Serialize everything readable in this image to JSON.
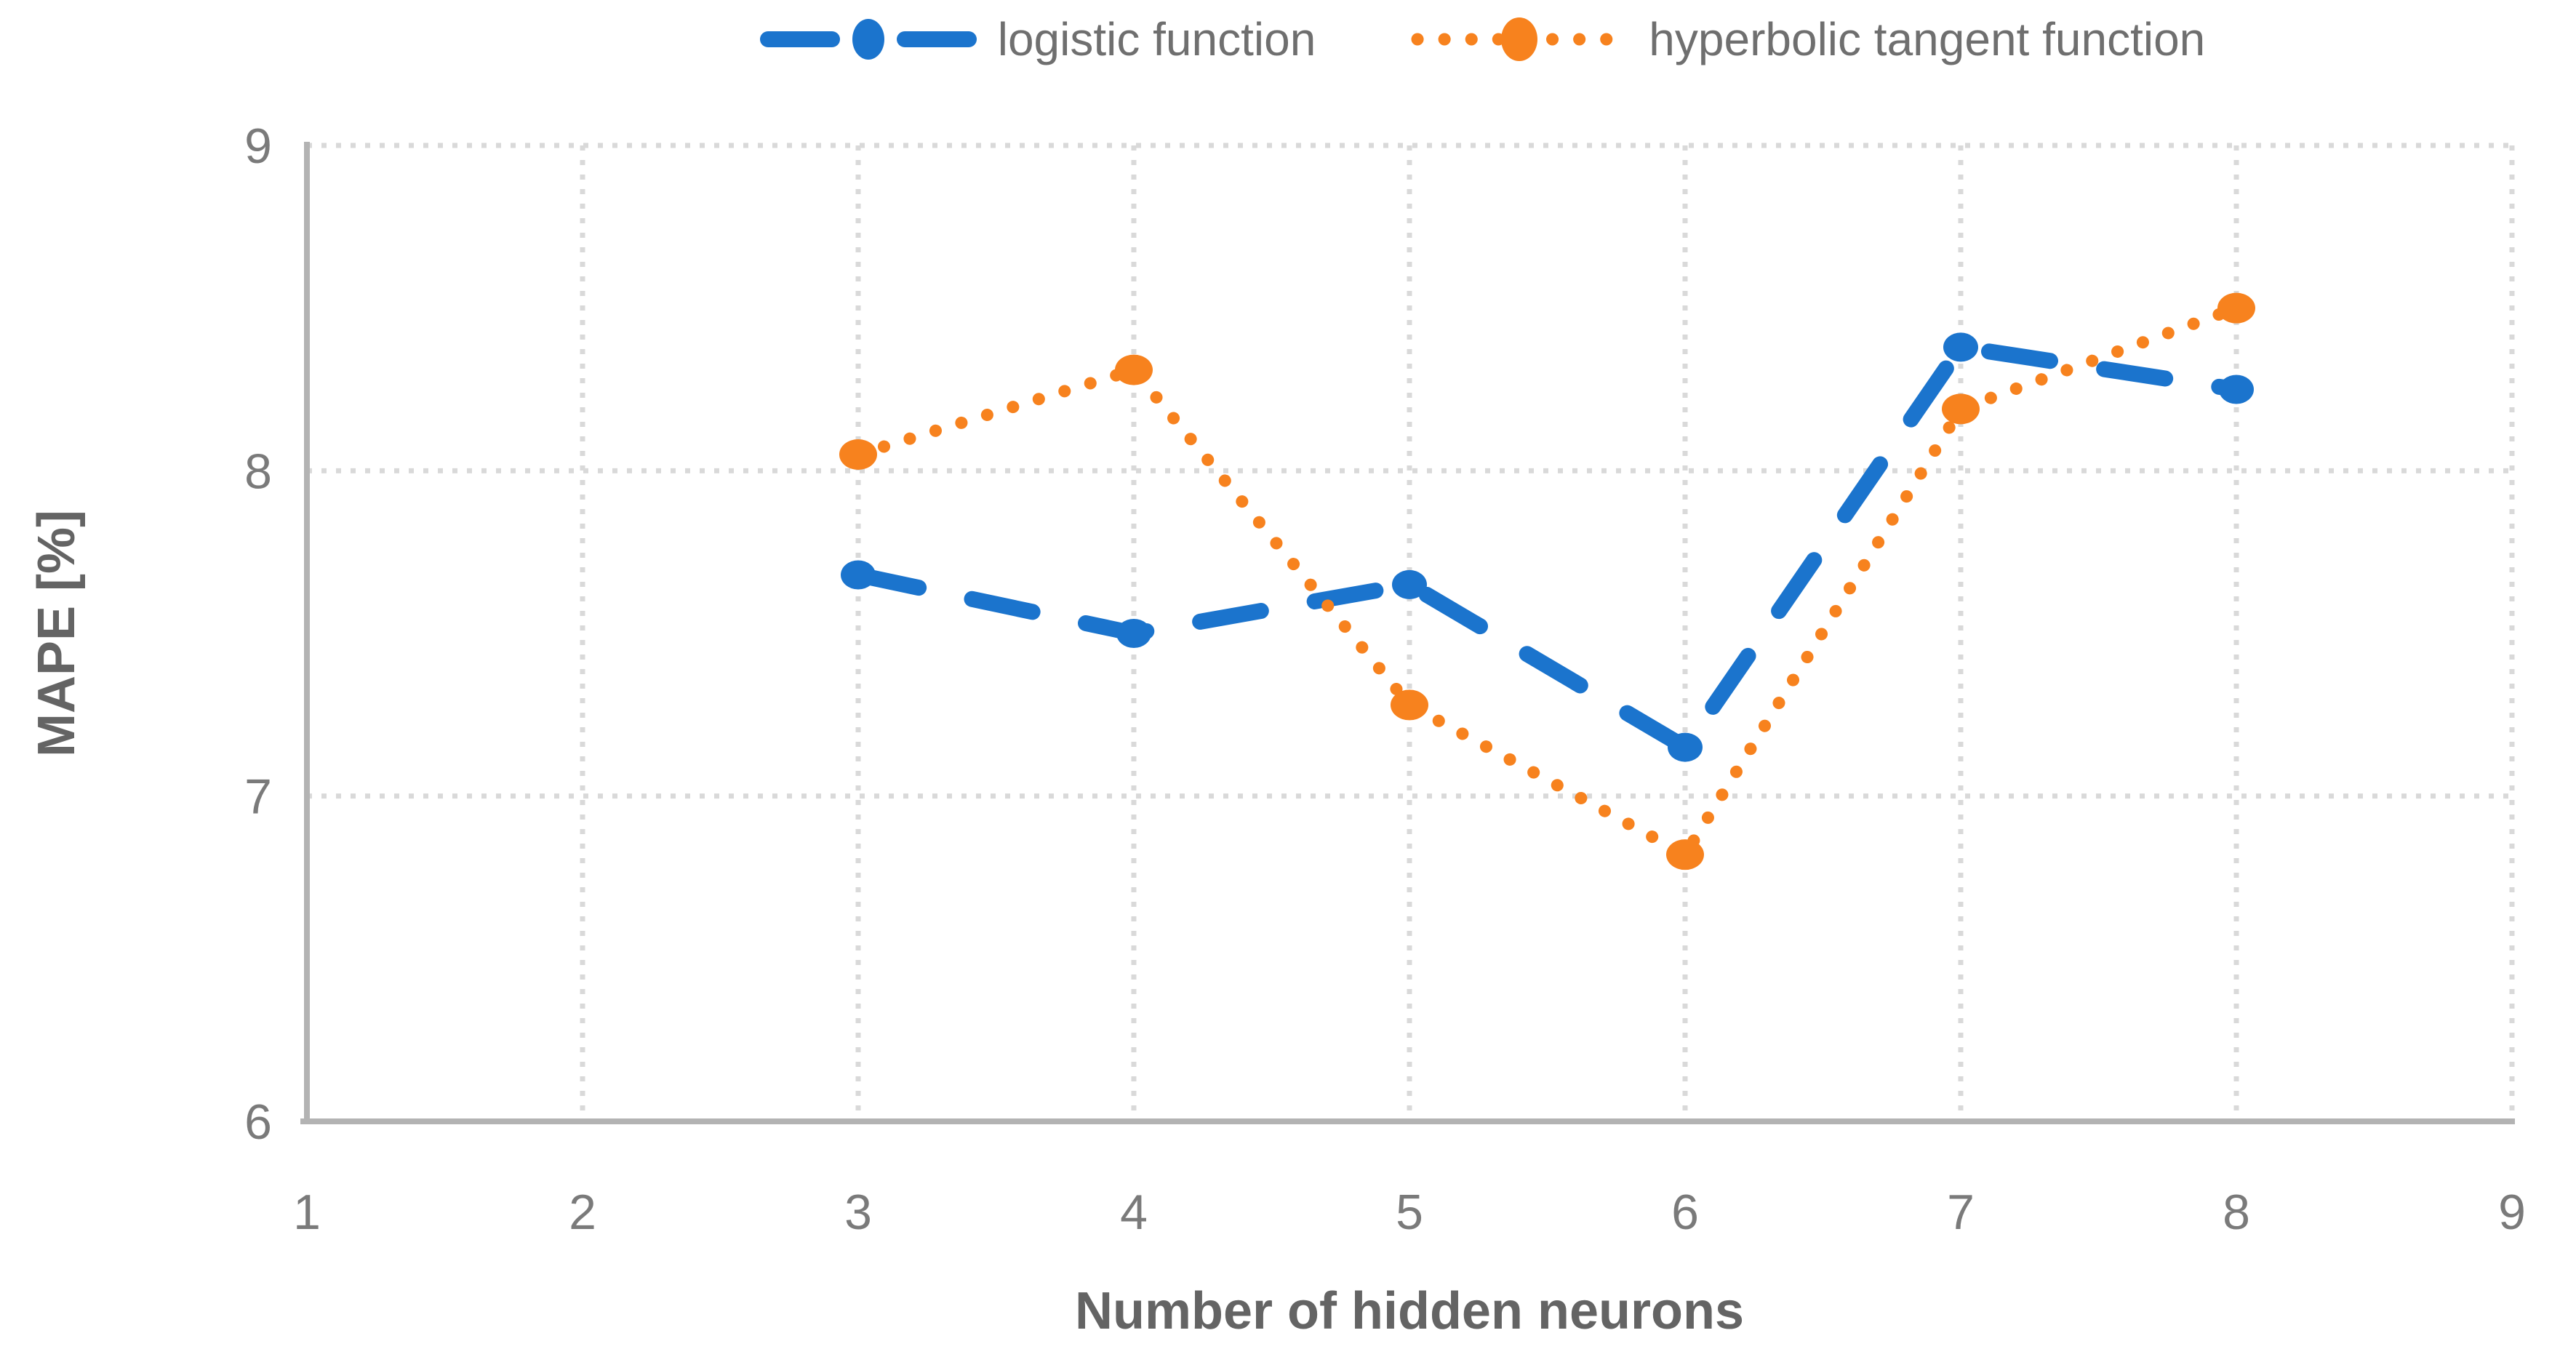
{
  "chart_data": {
    "type": "line",
    "title": "",
    "xlabel": "Number of hidden neurons",
    "ylabel": "MAPE [%]",
    "x": [
      3,
      4,
      5,
      6,
      7,
      8
    ],
    "series": [
      {
        "name": "logistic function",
        "color": "#1b74cd",
        "line_style": "dashed",
        "marker": "circle",
        "values": [
          7.68,
          7.5,
          7.65,
          7.15,
          8.38,
          8.25
        ]
      },
      {
        "name": "hyperbolic tangent function",
        "color": "#f7821e",
        "line_style": "dotted",
        "marker": "circle",
        "values": [
          8.05,
          8.31,
          7.28,
          6.82,
          8.19,
          8.5
        ]
      }
    ],
    "xlim": [
      1,
      9
    ],
    "ylim": [
      6,
      9
    ],
    "x_ticks": [
      "1",
      "2",
      "3",
      "4",
      "5",
      "6",
      "7",
      "8",
      "9"
    ],
    "y_ticks": [
      "6",
      "7",
      "8",
      "9"
    ],
    "grid": true,
    "legend_position": "top",
    "palette": {
      "gridline": "#d9d9d9",
      "axis_line": "#b3b3b3",
      "tick_text": "#7a7a7a",
      "axis_title_text": "#646464",
      "legend_text": "#6f6f6f",
      "background": "#ffffff"
    }
  }
}
